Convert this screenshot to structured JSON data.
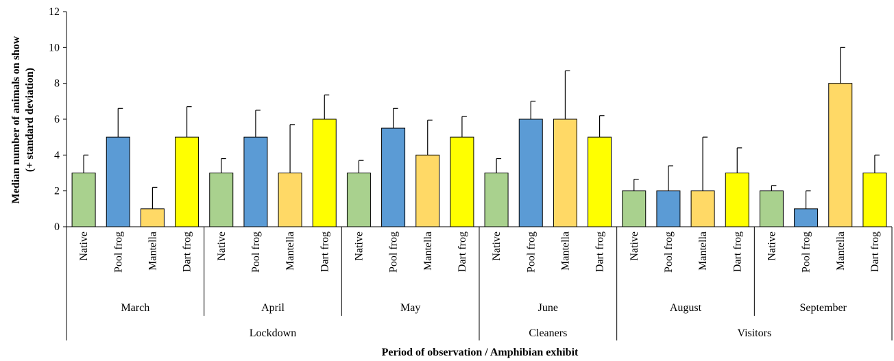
{
  "chart_data": {
    "type": "bar",
    "xlabel": "Period of observation / Amphibian exhibit",
    "ylabel_lines": [
      "Median number of animals on show",
      "(+ standard deviation)"
    ],
    "ylim": [
      0,
      12
    ],
    "yticks": [
      "0",
      "2",
      "4",
      "6",
      "8",
      "10",
      "12"
    ],
    "categories": [
      "Native",
      "Pool frog",
      "Mantella",
      "Dart frog"
    ],
    "colors": {
      "Native": "#a9d18e",
      "Pool frog": "#5b9bd5",
      "Mantella": "#ffd966",
      "Dart frog": "#ffff00"
    },
    "months": [
      {
        "name": "March",
        "values": [
          3,
          5,
          1,
          5
        ],
        "sd": [
          1.0,
          1.6,
          1.2,
          1.7
        ]
      },
      {
        "name": "April",
        "values": [
          3,
          5,
          3,
          6
        ],
        "sd": [
          0.8,
          1.5,
          2.7,
          1.35
        ]
      },
      {
        "name": "May",
        "values": [
          3,
          5.5,
          4,
          5
        ],
        "sd": [
          0.7,
          1.1,
          1.95,
          1.15
        ]
      },
      {
        "name": "June",
        "values": [
          3,
          6,
          6,
          5
        ],
        "sd": [
          0.8,
          1.0,
          2.7,
          1.2
        ]
      },
      {
        "name": "August",
        "values": [
          2,
          2,
          2,
          3
        ],
        "sd": [
          0.65,
          1.4,
          3.0,
          1.4
        ]
      },
      {
        "name": "September",
        "values": [
          2,
          1,
          8,
          3
        ],
        "sd": [
          0.3,
          1.0,
          2.0,
          1.0
        ]
      }
    ],
    "periods": [
      {
        "name": "Lockdown",
        "months": [
          "March",
          "April",
          "May"
        ]
      },
      {
        "name": "Cleaners",
        "months": [
          "June"
        ]
      },
      {
        "name": "Visitors",
        "months": [
          "August",
          "September"
        ]
      }
    ],
    "grid": false,
    "legend": "none"
  }
}
